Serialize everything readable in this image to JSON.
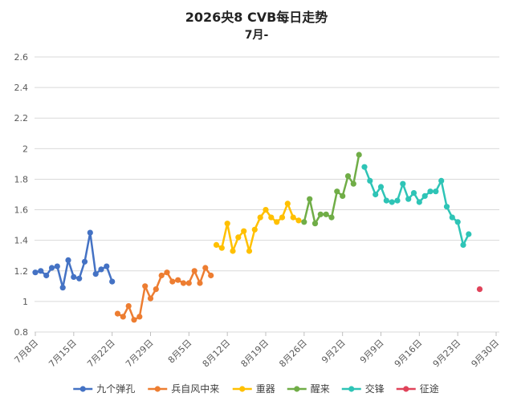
{
  "chart_data": {
    "type": "line",
    "title": "2026央8 CVB每日走势",
    "subtitle": "7月-",
    "xlabel": "",
    "ylabel": "",
    "ylim": [
      0.8,
      2.6
    ],
    "y_ticks": [
      "0.8",
      "1",
      "1.2",
      "1.4",
      "1.6",
      "1.8",
      "2",
      "2.2",
      "2.4",
      "2.6"
    ],
    "x_ticks": [
      "7月8日",
      "7月15日",
      "7月22日",
      "7月29日",
      "8月5日",
      "8月12日",
      "8月19日",
      "8月26日",
      "9月2日",
      "9月9日",
      "9月16日",
      "9月23日",
      "9月30日"
    ],
    "x_range_days": [
      0,
      84
    ],
    "grid": true,
    "legend_position": "bottom",
    "series": [
      {
        "name": "九个弹孔",
        "color": "#4472C4",
        "x": [
          0,
          1,
          2,
          3,
          4,
          5,
          6,
          7,
          8,
          9,
          10,
          11,
          12,
          13,
          14
        ],
        "values": [
          1.19,
          1.2,
          1.17,
          1.22,
          1.23,
          1.09,
          1.27,
          1.16,
          1.15,
          1.26,
          1.45,
          1.18,
          1.21,
          1.23,
          1.13
        ]
      },
      {
        "name": "兵自风中来",
        "color": "#ED7D31",
        "x": [
          15,
          16,
          17,
          18,
          19,
          20,
          21,
          22,
          23,
          24,
          25,
          26,
          27,
          28,
          29,
          30,
          31,
          32
        ],
        "values": [
          0.92,
          0.9,
          0.97,
          0.88,
          0.9,
          1.1,
          1.02,
          1.08,
          1.17,
          1.19,
          1.13,
          1.14,
          1.12,
          1.12,
          1.2,
          1.12,
          1.22,
          1.17
        ]
      },
      {
        "name": "重器",
        "color": "#FFC000",
        "x": [
          33,
          34,
          35,
          36,
          37,
          38,
          39,
          40,
          41,
          42,
          43,
          44,
          45,
          46,
          47,
          48
        ],
        "values": [
          1.37,
          1.35,
          1.51,
          1.33,
          1.42,
          1.46,
          1.33,
          1.47,
          1.55,
          1.6,
          1.55,
          1.52,
          1.55,
          1.64,
          1.55,
          1.53
        ]
      },
      {
        "name": "醒来",
        "color": "#70AD47",
        "x": [
          49,
          50,
          51,
          52,
          53,
          54,
          55,
          56,
          57,
          58,
          59
        ],
        "values": [
          1.52,
          1.67,
          1.51,
          1.57,
          1.57,
          1.55,
          1.72,
          1.69,
          1.82,
          1.77,
          1.96
        ]
      },
      {
        "name": "交锋",
        "color": "#2EC4B6",
        "x": [
          60,
          61,
          62,
          63,
          64,
          65,
          66,
          67,
          68,
          69,
          70,
          71,
          72,
          73,
          74,
          75,
          76,
          77,
          78,
          79
        ],
        "values": [
          1.88,
          1.79,
          1.7,
          1.75,
          1.66,
          1.65,
          1.66,
          1.77,
          1.67,
          1.71,
          1.65,
          1.69,
          1.72,
          1.72,
          1.79,
          1.62,
          1.55,
          1.52,
          1.37,
          1.44
        ]
      },
      {
        "name": "征途",
        "color": "#E0435A",
        "x": [
          81
        ],
        "values": [
          1.08
        ]
      }
    ]
  }
}
